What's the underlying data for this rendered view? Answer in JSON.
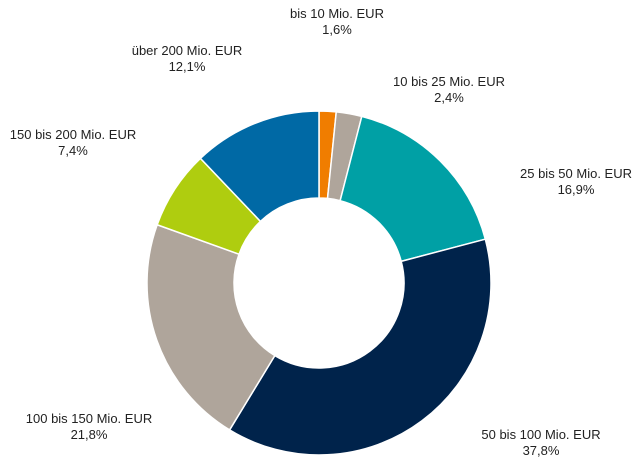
{
  "chart_data": {
    "type": "pie",
    "donut": true,
    "title": "",
    "legend": "none",
    "slices": [
      {
        "label": "bis 10 Mio. EUR",
        "value": 1.6,
        "value_label": "1,6%",
        "color": "#F07D00"
      },
      {
        "label": "10 bis 25 Mio. EUR",
        "value": 2.4,
        "value_label": "2,4%",
        "color": "#AFA59B"
      },
      {
        "label": "25 bis 50 Mio. EUR",
        "value": 16.9,
        "value_label": "16,9%",
        "color": "#00A0A5"
      },
      {
        "label": "50 bis 100 Mio. EUR",
        "value": 37.8,
        "value_label": "37,8%",
        "color": "#00234B"
      },
      {
        "label": "100 bis 150 Mio. EUR",
        "value": 21.8,
        "value_label": "21,8%",
        "color": "#AFA59B"
      },
      {
        "label": "150 bis 200 Mio. EUR",
        "value": 7.4,
        "value_label": "7,4%",
        "color": "#AFCD0F"
      },
      {
        "label": "über 200 Mio. EUR",
        "value": 12.1,
        "value_label": "12,1%",
        "color": "#0069A5"
      }
    ]
  }
}
